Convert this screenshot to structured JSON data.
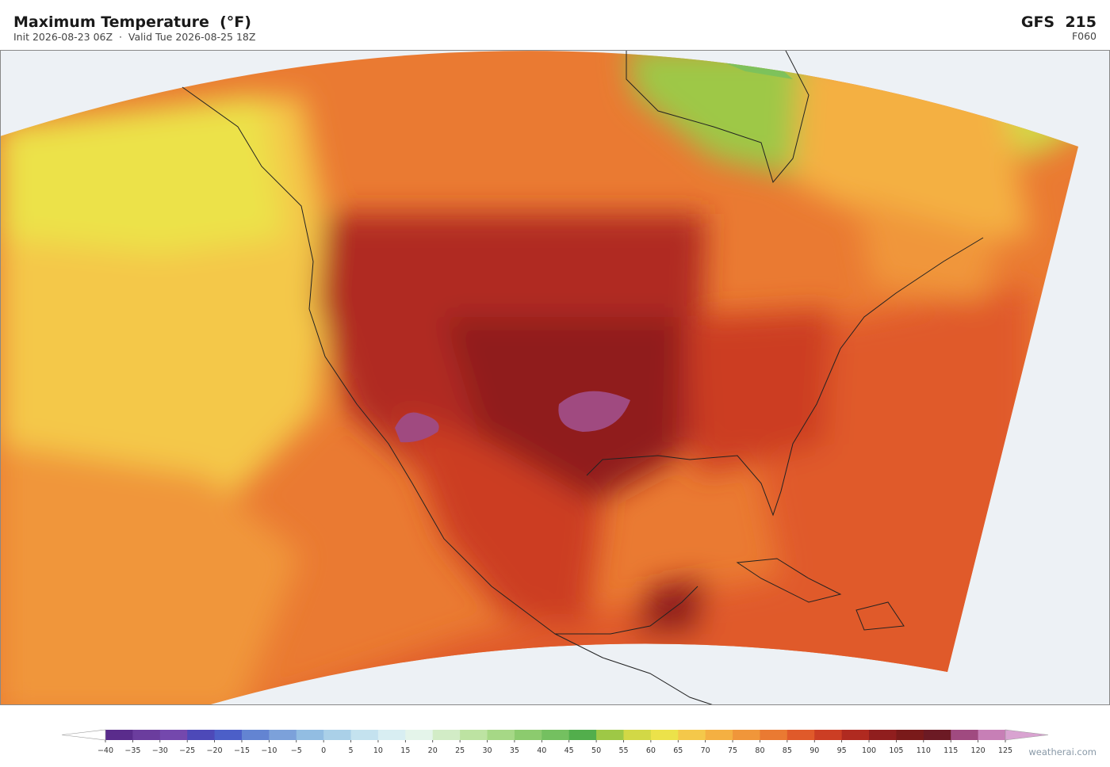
{
  "header": {
    "title": "Maximum Temperature  (°F)",
    "subtitle": "Init 2026-08-23 06Z  ·  Valid Tue 2026-08-25 18Z",
    "model": "GFS  215",
    "forecast_hour": "F060"
  },
  "colorbar": {
    "ticks": [
      {
        "value": -40,
        "label": "−40"
      },
      {
        "value": -35,
        "label": "−35"
      },
      {
        "value": -30,
        "label": "−30"
      },
      {
        "value": -25,
        "label": "−25"
      },
      {
        "value": -20,
        "label": "−20"
      },
      {
        "value": -15,
        "label": "−15"
      },
      {
        "value": -10,
        "label": "−10"
      },
      {
        "value": -5,
        "label": "−5"
      },
      0,
      5,
      10,
      15,
      20,
      25,
      30,
      35,
      40,
      45,
      50,
      55,
      60,
      65,
      70,
      75,
      80,
      85,
      90,
      95,
      100,
      105,
      110,
      115,
      120,
      125
    ],
    "colors": [
      "#5a2c8c",
      "#6b3d9e",
      "#7448ad",
      "#4d49b8",
      "#4c5fc8",
      "#6384d2",
      "#7ca1da",
      "#92bde2",
      "#aad0e8",
      "#c4e2ef",
      "#d8eef2",
      "#e4f4ea",
      "#d2ecc6",
      "#bde3a2",
      "#a6d886",
      "#8ccb6e",
      "#74c060",
      "#52ae4c",
      "#9ec846",
      "#d2d846",
      "#ece24a",
      "#f4c84a",
      "#f4b042",
      "#f0963a",
      "#ea7a32",
      "#e05a2a",
      "#cc3e24",
      "#b02a20",
      "#901e1e",
      "#7a1a1a",
      "#6c1a24",
      "#a04a80",
      "#c77fb6"
    ],
    "extend_colors": [
      "#ffffff",
      "#d9a3d1"
    ]
  },
  "watermark": "weatherai.com"
}
